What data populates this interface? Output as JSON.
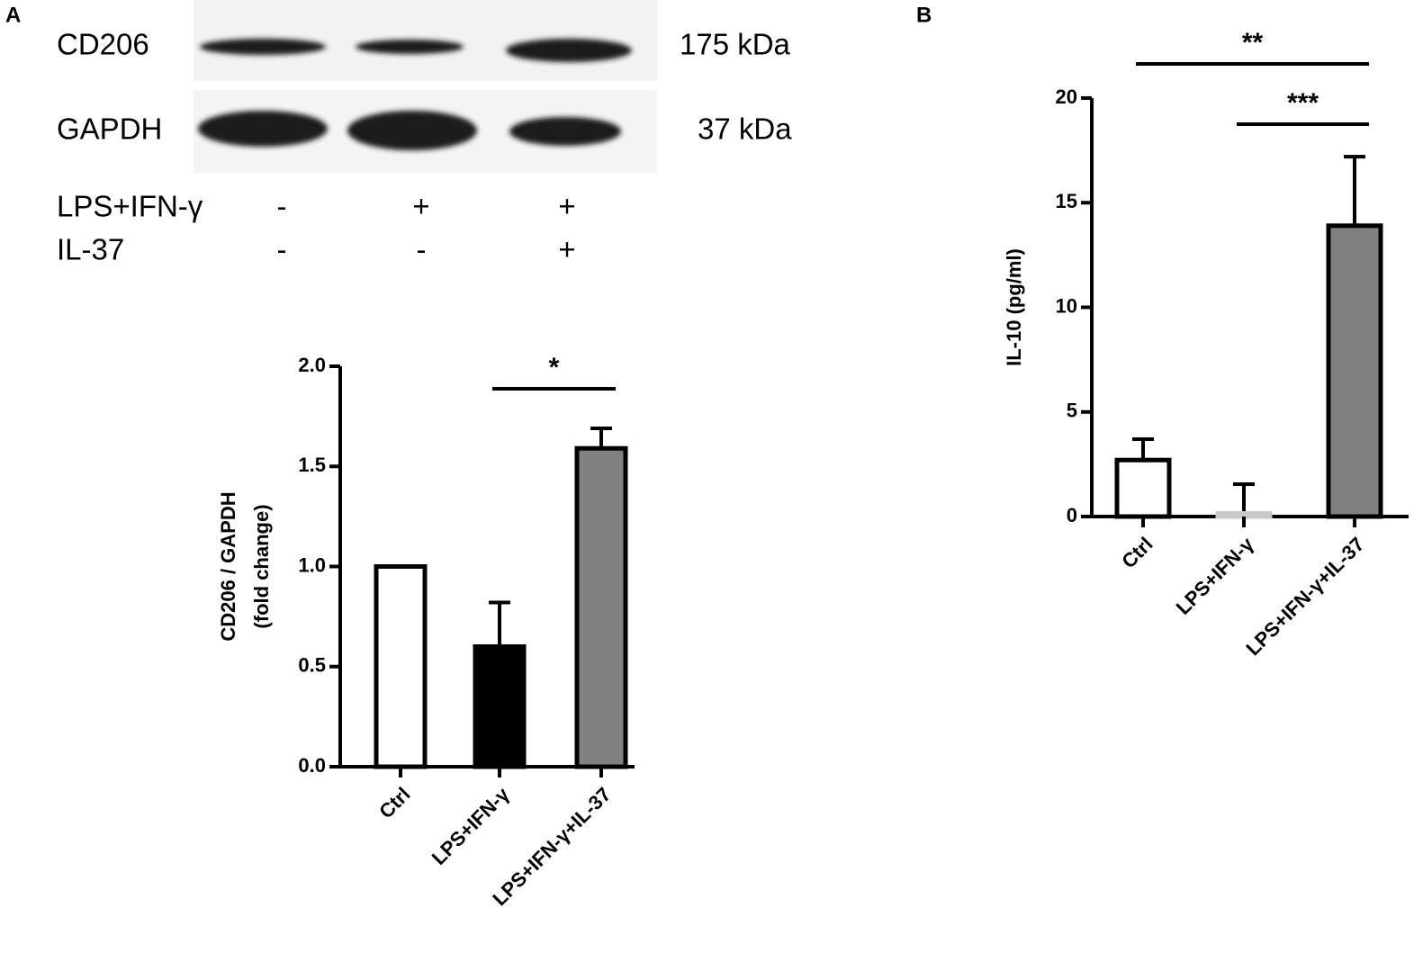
{
  "panels": [
    "A",
    "B"
  ],
  "blot": {
    "rows": [
      {
        "name": "CD206",
        "size": "175 kDa"
      },
      {
        "name": "GAPDH",
        "size": "37 kDa"
      }
    ],
    "treatments": [
      {
        "name": "LPS+IFN-γ",
        "marks": [
          "-",
          "+",
          "+"
        ]
      },
      {
        "name": "IL-37",
        "marks": [
          "-",
          "-",
          "+"
        ]
      }
    ]
  },
  "chart_data": [
    {
      "type": "bar",
      "ylabel": [
        "CD206 / GAPDH",
        "(fold change)"
      ],
      "categories": [
        "Ctrl",
        "LPS+IFN-γ",
        "LPS+IFN-γ+IL-37"
      ],
      "values": [
        1.0,
        0.6,
        1.59
      ],
      "errors": [
        null,
        0.22,
        0.1
      ],
      "colors": [
        "#ffffff",
        "#000000",
        "#808080"
      ],
      "ylim": [
        0,
        2
      ],
      "yticks": [
        {
          "value": 0,
          "label": "0.0"
        },
        {
          "value": 0.5,
          "label": "0.5"
        },
        {
          "value": 1,
          "label": "1.0"
        },
        {
          "value": 1.5,
          "label": "1.5"
        },
        {
          "value": 2,
          "label": "2.0"
        }
      ],
      "annotations": [
        {
          "text": "*",
          "from": 1,
          "to": 2
        }
      ]
    },
    {
      "type": "bar",
      "ylabel": [
        "IL-10 (pg/ml)"
      ],
      "categories": [
        "Ctrl",
        "LPS+IFN-γ",
        "LPS+IFN-γ+IL-37"
      ],
      "values": [
        2.7,
        0.15,
        13.9
      ],
      "errors": [
        1.0,
        1.4,
        3.3
      ],
      "colors": [
        "#ffffff",
        "#c8c8c8",
        "#808080"
      ],
      "ylim": [
        0,
        20
      ],
      "yticks": [
        0,
        5,
        10,
        15,
        20
      ],
      "annotations": [
        {
          "text": "**",
          "from": 0,
          "to": 2
        },
        {
          "text": "***",
          "from": 1,
          "to": 2
        }
      ]
    }
  ]
}
